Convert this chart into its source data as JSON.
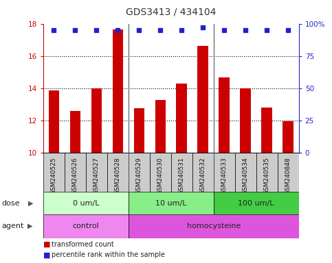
{
  "title": "GDS3413 / 434104",
  "samples": [
    "GSM240525",
    "GSM240526",
    "GSM240527",
    "GSM240528",
    "GSM240529",
    "GSM240530",
    "GSM240531",
    "GSM240532",
    "GSM240533",
    "GSM240534",
    "GSM240535",
    "GSM240848"
  ],
  "transformed_count": [
    13.85,
    12.6,
    14.0,
    17.65,
    12.75,
    13.25,
    14.3,
    16.6,
    14.65,
    14.0,
    12.8,
    11.95
  ],
  "percentile_rank": [
    95,
    95,
    95,
    95,
    95,
    95,
    95,
    97,
    95,
    95,
    95,
    95
  ],
  "ylim_left": [
    10,
    18
  ],
  "ylim_right": [
    0,
    100
  ],
  "yticks_left": [
    10,
    12,
    14,
    16,
    18
  ],
  "yticks_right": [
    0,
    25,
    50,
    75,
    100
  ],
  "bar_color": "#cc0000",
  "dot_color": "#2222cc",
  "grid_color": "#000000",
  "dose_groups": [
    {
      "label": "0 um/L",
      "start": 0,
      "end": 4,
      "color": "#ccffcc"
    },
    {
      "label": "10 um/L",
      "start": 4,
      "end": 8,
      "color": "#88ee88"
    },
    {
      "label": "100 um/L",
      "start": 8,
      "end": 12,
      "color": "#44cc44"
    }
  ],
  "agent_groups": [
    {
      "label": "control",
      "start": 0,
      "end": 4,
      "color": "#ee88ee"
    },
    {
      "label": "homocysteine",
      "start": 4,
      "end": 12,
      "color": "#dd55dd"
    }
  ],
  "dose_label": "dose",
  "agent_label": "agent",
  "legend_bar_label": "transformed count",
  "legend_dot_label": "percentile rank within the sample",
  "axis_left_color": "#cc0000",
  "axis_right_color": "#2222cc",
  "bg_color": "#ffffff",
  "label_bg_color": "#cccccc",
  "border_color": "#000000",
  "group_sep_color": "#555555"
}
